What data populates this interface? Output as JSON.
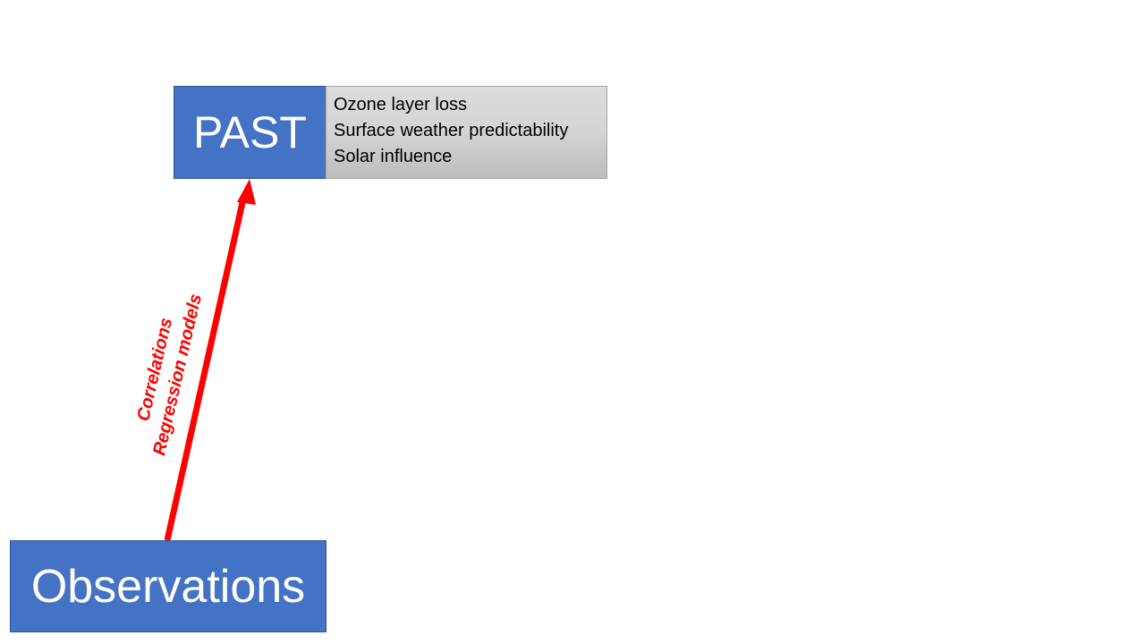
{
  "diagram": {
    "past_box": {
      "label": "PAST"
    },
    "info_box": {
      "lines": [
        "Ozone layer loss",
        "Surface weather predictability",
        "Solar influence"
      ]
    },
    "observations_box": {
      "label": "Observations"
    },
    "arrow": {
      "color": "#ff0000",
      "labels": [
        "Correlations",
        "Regression models"
      ]
    },
    "colors": {
      "box_fill": "#4472c4",
      "box_text": "#ffffff",
      "info_fill": "#d4d4d4"
    }
  }
}
